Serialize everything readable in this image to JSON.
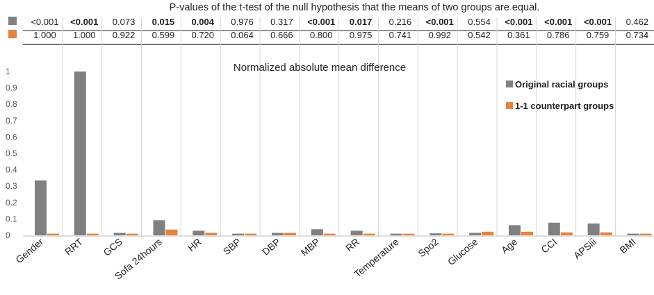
{
  "chart_data": {
    "type": "bar",
    "title": "P-values of the t-test of the null hypothesis that the means of two groups are equal.",
    "subtitle": "Normalized  absolute mean difference",
    "categories": [
      "Gender",
      "RRT",
      "GCS",
      "Sofa 24hours",
      "HR",
      "SBP",
      "DBP",
      "MBP",
      "RR",
      "Temperature",
      "Spo2",
      "Glucose",
      "Age",
      "CCI",
      "APSiii",
      "BMI"
    ],
    "colors": {
      "original": "#808080",
      "counterpart": "#E8823C"
    },
    "series": [
      {
        "name": "Original racial groups",
        "values": [
          0.335,
          1.0,
          0.015,
          0.092,
          0.028,
          0.01,
          0.015,
          0.037,
          0.028,
          0.01,
          0.012,
          0.015,
          0.062,
          0.077,
          0.072,
          0.01
        ],
        "pvalues": [
          "<0.001",
          "<0.001",
          "0.073",
          "0.015",
          "0.004",
          "0.976",
          "0.317",
          "<0.001",
          "0.017",
          "0.216",
          "<0.001",
          "0.554",
          "<0.001",
          "<0.001",
          "<0.001",
          "0.462"
        ],
        "bold": [
          false,
          true,
          false,
          true,
          true,
          false,
          false,
          true,
          true,
          false,
          true,
          false,
          true,
          true,
          true,
          false
        ]
      },
      {
        "name": "1-1 counterpart groups",
        "values": [
          0.01,
          0.01,
          0.01,
          0.035,
          0.015,
          0.01,
          0.015,
          0.01,
          0.01,
          0.01,
          0.01,
          0.022,
          0.022,
          0.018,
          0.018,
          0.01
        ],
        "pvalues": [
          "1.000",
          "1.000",
          "0.922",
          "0.599",
          "0.720",
          "0.064",
          "0.666",
          "0.800",
          "0.975",
          "0.741",
          "0.992",
          "0.542",
          "0.361",
          "0.786",
          "0.759",
          "0.734"
        ],
        "bold": [
          false,
          false,
          false,
          false,
          false,
          false,
          false,
          false,
          false,
          false,
          false,
          false,
          false,
          false,
          false,
          false
        ]
      }
    ],
    "yticks": [
      "0",
      "0.1",
      "0.2",
      "0.3",
      "0.4",
      "0.5",
      "0.6",
      "0.7",
      "0.8",
      "0.9",
      "1"
    ],
    "ylim": [
      0,
      1.0
    ],
    "grid": false,
    "legend_position": "right"
  }
}
